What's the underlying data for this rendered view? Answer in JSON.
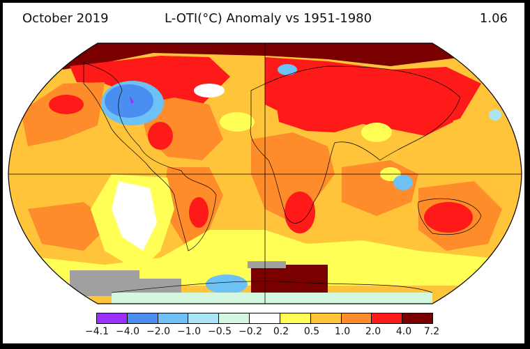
{
  "header": {
    "date": "October 2019",
    "title": "L-OTI(°C) Anomaly vs 1951-1980",
    "global_mean": "1.06"
  },
  "legend": {
    "labels": [
      "−4.1",
      "−4.0",
      "−2.0",
      "−1.0",
      "−0.5",
      "−0.2",
      "0.2",
      "0.5",
      "1.0",
      "2.0",
      "4.0",
      "7.2"
    ],
    "colors": [
      "#9b30ff",
      "#4a8ff0",
      "#6ec1f4",
      "#a8e6f6",
      "#d4f7df",
      "#ffffff",
      "#ffff55",
      "#ffc43a",
      "#ff8c2a",
      "#ff1a1a",
      "#7a0000"
    ]
  },
  "map": {
    "projection": "Robinson",
    "missing_color": "#a0a0a0",
    "ocean_base_color": "#ffc43a"
  }
}
